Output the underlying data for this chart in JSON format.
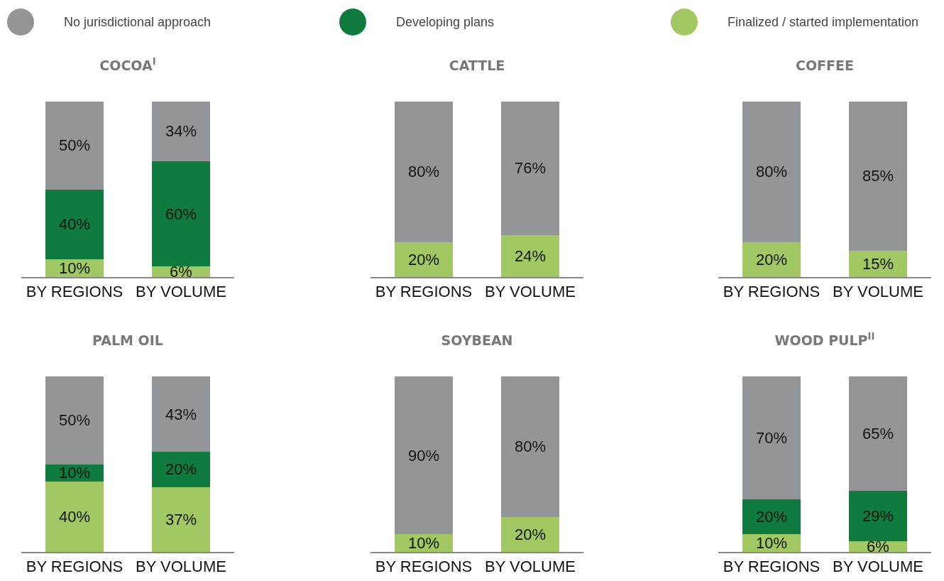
{
  "chart_data": [
    {
      "type": "bar",
      "title": "COCOA$^{I}$",
      "categories": [
        "BY REGIONS",
        "BY VOLUME"
      ],
      "stacked": true,
      "tick_labels": "x",
      "legend": "top",
      "series": [
        {
          "name": "Finalized / started implementation",
          "color": "#a1c862",
          "values": [
            10,
            6
          ],
          "value_labels": [
            "10%",
            "6%"
          ]
        },
        {
          "name": "Developing plans",
          "color": "#0f7b3e",
          "values": [
            40,
            60
          ],
          "value_labels": [
            "40%",
            "60%"
          ]
        },
        {
          "name": "No jurisdictional approach",
          "color": "#939598",
          "values": [
            50,
            34
          ],
          "value_labels": [
            "50%",
            "34%"
          ]
        }
      ]
    },
    {
      "type": "bar",
      "title": "CATTLE",
      "categories": [
        "BY REGIONS",
        "BY VOLUME"
      ],
      "stacked": true,
      "tick_labels": "x",
      "series": [
        {
          "color": "#a1c862",
          "values": [
            20,
            24
          ],
          "value_labels": [
            "20%",
            "24%"
          ]
        },
        {
          "color": "#939598",
          "values": [
            80,
            76
          ],
          "value_labels": [
            "80%",
            "76%"
          ]
        }
      ]
    },
    {
      "type": "bar",
      "title": "COFFEE",
      "categories": [
        "BY REGIONS",
        "BY VOLUME"
      ],
      "stacked": true,
      "tick_labels": "x",
      "series": [
        {
          "color": "#a1c862",
          "values": [
            20,
            15
          ],
          "value_labels": [
            "20%",
            "15%"
          ]
        },
        {
          "color": "#939598",
          "values": [
            80,
            85
          ],
          "value_labels": [
            "80%",
            "85%"
          ]
        }
      ]
    },
    {
      "type": "bar",
      "title": "PALM OIL",
      "categories": [
        "BY REGIONS",
        "BY VOLUME"
      ],
      "stacked": true,
      "tick_labels": "x",
      "series": [
        {
          "color": "#a1c862",
          "values": [
            40,
            37
          ],
          "value_labels": [
            "40%",
            "37%"
          ]
        },
        {
          "color": "#0f7b3e",
          "values": [
            10,
            20
          ],
          "value_labels": [
            "10%",
            "20%"
          ]
        },
        {
          "color": "#939598",
          "values": [
            50,
            43
          ],
          "value_labels": [
            "50%",
            "43%"
          ]
        }
      ]
    },
    {
      "type": "bar",
      "title": "SOYBEAN",
      "categories": [
        "BY REGIONS",
        "BY VOLUME"
      ],
      "stacked": true,
      "tick_labels": "x",
      "series": [
        {
          "color": "#a1c862",
          "values": [
            10,
            20
          ],
          "value_labels": [
            "10%",
            "20%"
          ]
        },
        {
          "color": "#939598",
          "values": [
            90,
            80
          ],
          "value_labels": [
            "90%",
            "80%"
          ]
        }
      ]
    },
    {
      "type": "bar",
      "title": "WOOD PULP$^{II}$",
      "categories": [
        "BY REGIONS",
        "BY VOLUME"
      ],
      "stacked": true,
      "tick_labels": "x",
      "series": [
        {
          "color": "#a1c862",
          "values": [
            10,
            6
          ],
          "value_labels": [
            "10%",
            "6%"
          ]
        },
        {
          "color": "#0f7b3e",
          "values": [
            20,
            29
          ],
          "value_labels": [
            "20%",
            "29%"
          ]
        },
        {
          "color": "#939598",
          "values": [
            70,
            65
          ],
          "value_labels": [
            "70%",
            "65%"
          ]
        }
      ]
    }
  ]
}
